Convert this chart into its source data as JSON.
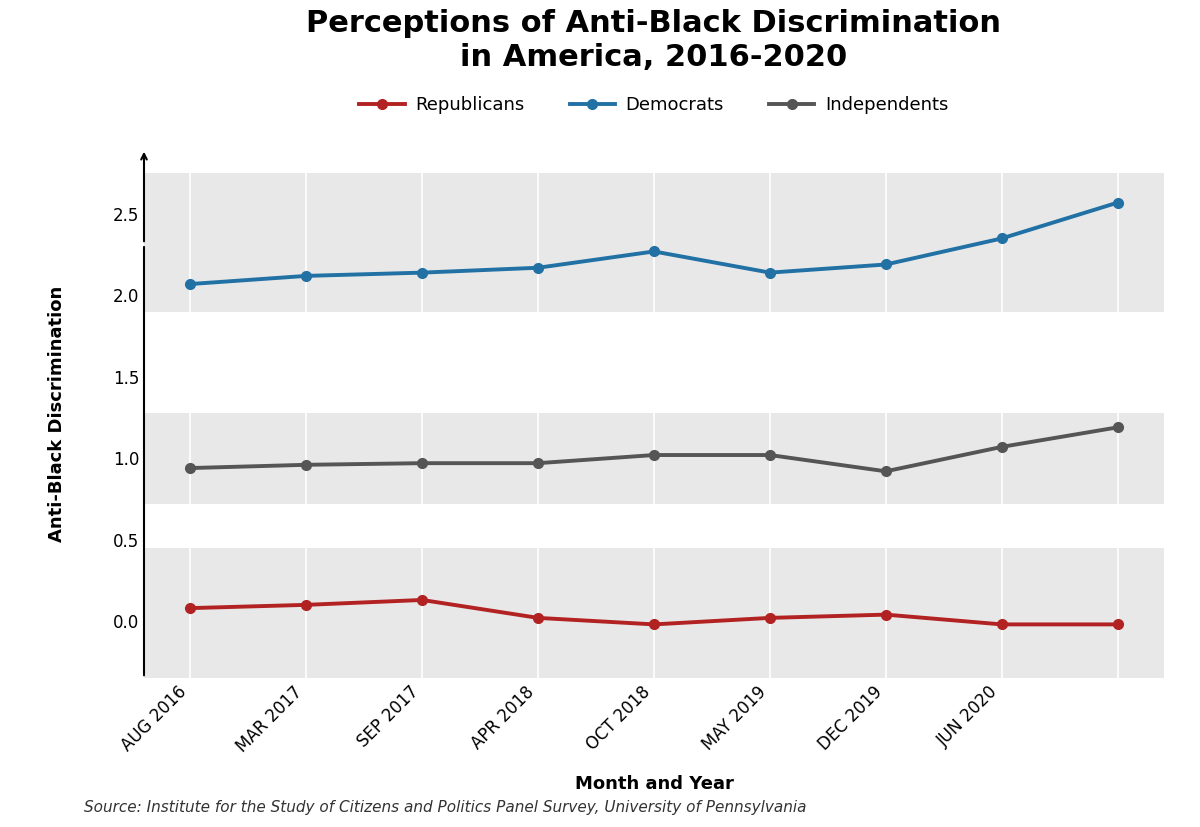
{
  "title": "Perceptions of Anti-Black Discrimination\nin America, 2016-2020",
  "xlabel": "Month and Year",
  "ylabel": "Anti-Black Discrimination",
  "source": "Source: Institute for the Study of Citizens and Politics Panel Survey, University of Pennsylvania",
  "x_labels": [
    "AUG 2016",
    "MAR 2017",
    "SEP 2017",
    "APR 2018",
    "OCT 2018",
    "MAY 2019",
    "DEC 2019",
    "JUN 2020",
    ""
  ],
  "republicans": [
    0.08,
    0.1,
    0.13,
    0.02,
    -0.02,
    0.02,
    0.04,
    -0.02,
    -0.02
  ],
  "democrats": [
    2.07,
    2.12,
    2.14,
    2.17,
    2.27,
    2.14,
    2.19,
    2.35,
    2.57
  ],
  "independents": [
    0.94,
    0.96,
    0.97,
    0.97,
    1.02,
    1.02,
    0.92,
    1.07,
    1.19
  ],
  "rep_color": "#b22222",
  "dem_color": "#2171a5",
  "ind_color": "#555555",
  "background_color": "#ffffff",
  "band_color": "#e8e8e8",
  "ylim": [
    -0.35,
    2.9
  ],
  "band_ranges": [
    [
      -0.35,
      0.45
    ],
    [
      0.72,
      1.28
    ],
    [
      1.9,
      2.75
    ]
  ],
  "yticks": [
    0.0,
    0.5,
    1.0,
    1.5,
    2.0,
    2.5
  ],
  "title_fontsize": 22,
  "axis_label_fontsize": 13,
  "tick_fontsize": 12,
  "legend_fontsize": 13,
  "source_fontsize": 11
}
